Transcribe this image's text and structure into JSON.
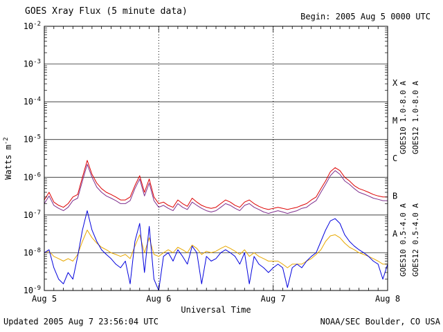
{
  "header": {
    "title": "GOES Xray Flux (5 minute data)",
    "begin_label": "Begin: 2005 Aug 5 0000 UTC"
  },
  "footer": {
    "updated": "Updated 2005 Aug 7 23:56:04 UTC",
    "source": "NOAA/SEC Boulder, CO USA"
  },
  "chart_data": {
    "type": "line",
    "title": "GOES Xray Flux (5 minute data)",
    "xlabel": "Universal Time",
    "ylabel_base": "Watts m",
    "ylabel_exponent": "-2",
    "x_unit": "hours since 2005 Aug 5 0000 UTC",
    "x_start_hour": 0,
    "x_step_hours": 1,
    "x_total_hours": 72,
    "x_tick_hours": [
      0,
      24,
      48,
      72
    ],
    "x_tick_labels": [
      "Aug 5",
      "Aug 6",
      "Aug 7",
      "Aug 8"
    ],
    "y_range": [
      1e-09,
      0.01
    ],
    "y_tick_exponents": [
      -2,
      -3,
      -4,
      -5,
      -6,
      -7,
      -8,
      -9
    ],
    "grid": {
      "horizontal": "solid",
      "day_boundaries": "dotted"
    },
    "flare_classes": [
      {
        "label": "X",
        "midpoint_exponent": -3.5
      },
      {
        "label": "M",
        "midpoint_exponent": -4.5
      },
      {
        "label": "C",
        "midpoint_exponent": -5.5
      },
      {
        "label": "B",
        "midpoint_exponent": -6.5
      },
      {
        "label": "A",
        "midpoint_exponent": -7.5
      }
    ],
    "series": [
      {
        "name": "GOES10 1.0-8.0 A",
        "satellite": "GOES10",
        "band": "long",
        "color": "#7d2e8d",
        "values": [
          2e-07,
          3.2e-07,
          1.8e-07,
          1.5e-07,
          1.3e-07,
          1.6e-07,
          2.4e-07,
          2.8e-07,
          8e-07,
          2.2e-06,
          1e-06,
          5.5e-07,
          4e-07,
          3.2e-07,
          2.8e-07,
          2.4e-07,
          2e-07,
          2e-07,
          2.4e-07,
          5e-07,
          9e-07,
          3.2e-07,
          7e-07,
          2.4e-07,
          1.6e-07,
          1.8e-07,
          1.5e-07,
          1.3e-07,
          2e-07,
          1.6e-07,
          1.4e-07,
          2.2e-07,
          1.8e-07,
          1.5e-07,
          1.3e-07,
          1.2e-07,
          1.3e-07,
          1.6e-07,
          2e-07,
          1.8e-07,
          1.5e-07,
          1.3e-07,
          1.8e-07,
          2e-07,
          1.6e-07,
          1.4e-07,
          1.2e-07,
          1.1e-07,
          1.2e-07,
          1.3e-07,
          1.2e-07,
          1.1e-07,
          1.2e-07,
          1.3e-07,
          1.5e-07,
          1.6e-07,
          2e-07,
          2.4e-07,
          4e-07,
          6.5e-07,
          1.1e-06,
          1.5e-06,
          1.2e-06,
          8e-07,
          6.5e-07,
          5e-07,
          4e-07,
          3.6e-07,
          3.2e-07,
          2.8e-07,
          2.6e-07,
          2.4e-07,
          2.4e-07
        ]
      },
      {
        "name": "GOES10 0.5-4.0 A",
        "satellite": "GOES10",
        "band": "short",
        "color": "#e8a800",
        "values": [
          1e-08,
          1.1e-08,
          8e-09,
          7e-09,
          6e-09,
          7e-09,
          6e-09,
          9e-09,
          2e-08,
          4e-08,
          2.5e-08,
          1.8e-08,
          1.4e-08,
          1.2e-08,
          1e-08,
          9e-09,
          8e-09,
          9e-09,
          7e-09,
          1.5e-08,
          3e-08,
          1e-08,
          2.5e-08,
          9e-09,
          8e-09,
          1e-08,
          1.2e-08,
          1e-08,
          1.4e-08,
          1.2e-08,
          1e-08,
          1.6e-08,
          1.3e-08,
          9e-09,
          1.1e-08,
          1e-08,
          1.1e-08,
          1.3e-08,
          1.5e-08,
          1.3e-08,
          1.1e-08,
          9e-09,
          1.2e-08,
          8e-09,
          1e-08,
          8e-09,
          7e-09,
          6e-09,
          6e-09,
          6e-09,
          5e-09,
          4e-09,
          5e-09,
          5e-09,
          5e-09,
          6e-09,
          7e-09,
          9e-09,
          1.2e-08,
          2e-08,
          2.8e-08,
          3e-08,
          2.5e-08,
          1.8e-08,
          1.4e-08,
          1.2e-08,
          1e-08,
          9e-09,
          8e-09,
          7e-09,
          6e-09,
          5e-09,
          5e-09
        ]
      },
      {
        "name": "GOES12 1.0-8.0 A",
        "satellite": "GOES12",
        "band": "long",
        "color": "#dd0000",
        "values": [
          2.5e-07,
          4e-07,
          2.2e-07,
          1.8e-07,
          1.6e-07,
          2e-07,
          3e-07,
          3.5e-07,
          1e-06,
          2.8e-06,
          1.2e-06,
          7e-07,
          5e-07,
          4e-07,
          3.5e-07,
          3e-07,
          2.5e-07,
          2.5e-07,
          3e-07,
          6e-07,
          1.1e-06,
          4e-07,
          9e-07,
          3e-07,
          2e-07,
          2.2e-07,
          1.8e-07,
          1.6e-07,
          2.5e-07,
          2e-07,
          1.7e-07,
          2.8e-07,
          2.2e-07,
          1.8e-07,
          1.6e-07,
          1.5e-07,
          1.6e-07,
          2e-07,
          2.5e-07,
          2.2e-07,
          1.8e-07,
          1.6e-07,
          2.2e-07,
          2.5e-07,
          2e-07,
          1.7e-07,
          1.5e-07,
          1.4e-07,
          1.5e-07,
          1.6e-07,
          1.5e-07,
          1.4e-07,
          1.5e-07,
          1.6e-07,
          1.8e-07,
          2e-07,
          2.5e-07,
          3e-07,
          5e-07,
          8e-07,
          1.4e-06,
          1.8e-06,
          1.5e-06,
          1e-06,
          8e-07,
          6e-07,
          5e-07,
          4.5e-07,
          4e-07,
          3.5e-07,
          3.2e-07,
          3e-07,
          3e-07
        ]
      },
      {
        "name": "GOES12 0.5-4.0 A",
        "satellite": "GOES12",
        "band": "short",
        "color": "#0000dd",
        "values": [
          1e-08,
          1.2e-08,
          4e-09,
          2e-09,
          1.5e-09,
          3e-09,
          2e-09,
          8e-09,
          4e-08,
          1.3e-07,
          4e-08,
          2e-08,
          1.2e-08,
          9e-09,
          7e-09,
          5e-09,
          4e-09,
          6e-09,
          1.5e-09,
          2e-08,
          6e-08,
          3e-09,
          5e-08,
          2e-09,
          1e-09,
          8e-09,
          1e-08,
          6e-09,
          1.2e-08,
          8e-09,
          5e-09,
          1.5e-08,
          1e-08,
          1.5e-09,
          8e-09,
          6e-09,
          7e-09,
          1e-08,
          1.2e-08,
          1e-08,
          8e-09,
          5e-09,
          1e-08,
          1.5e-09,
          8e-09,
          5e-09,
          4e-09,
          3e-09,
          4e-09,
          5e-09,
          4e-09,
          1.2e-09,
          4e-09,
          5e-09,
          4e-09,
          6e-09,
          8e-09,
          1e-08,
          2e-08,
          4e-08,
          7e-08,
          8e-08,
          6e-08,
          3e-08,
          2e-08,
          1.5e-08,
          1.2e-08,
          1e-08,
          8e-09,
          6e-09,
          5e-09,
          2e-09,
          5e-09
        ]
      }
    ]
  }
}
